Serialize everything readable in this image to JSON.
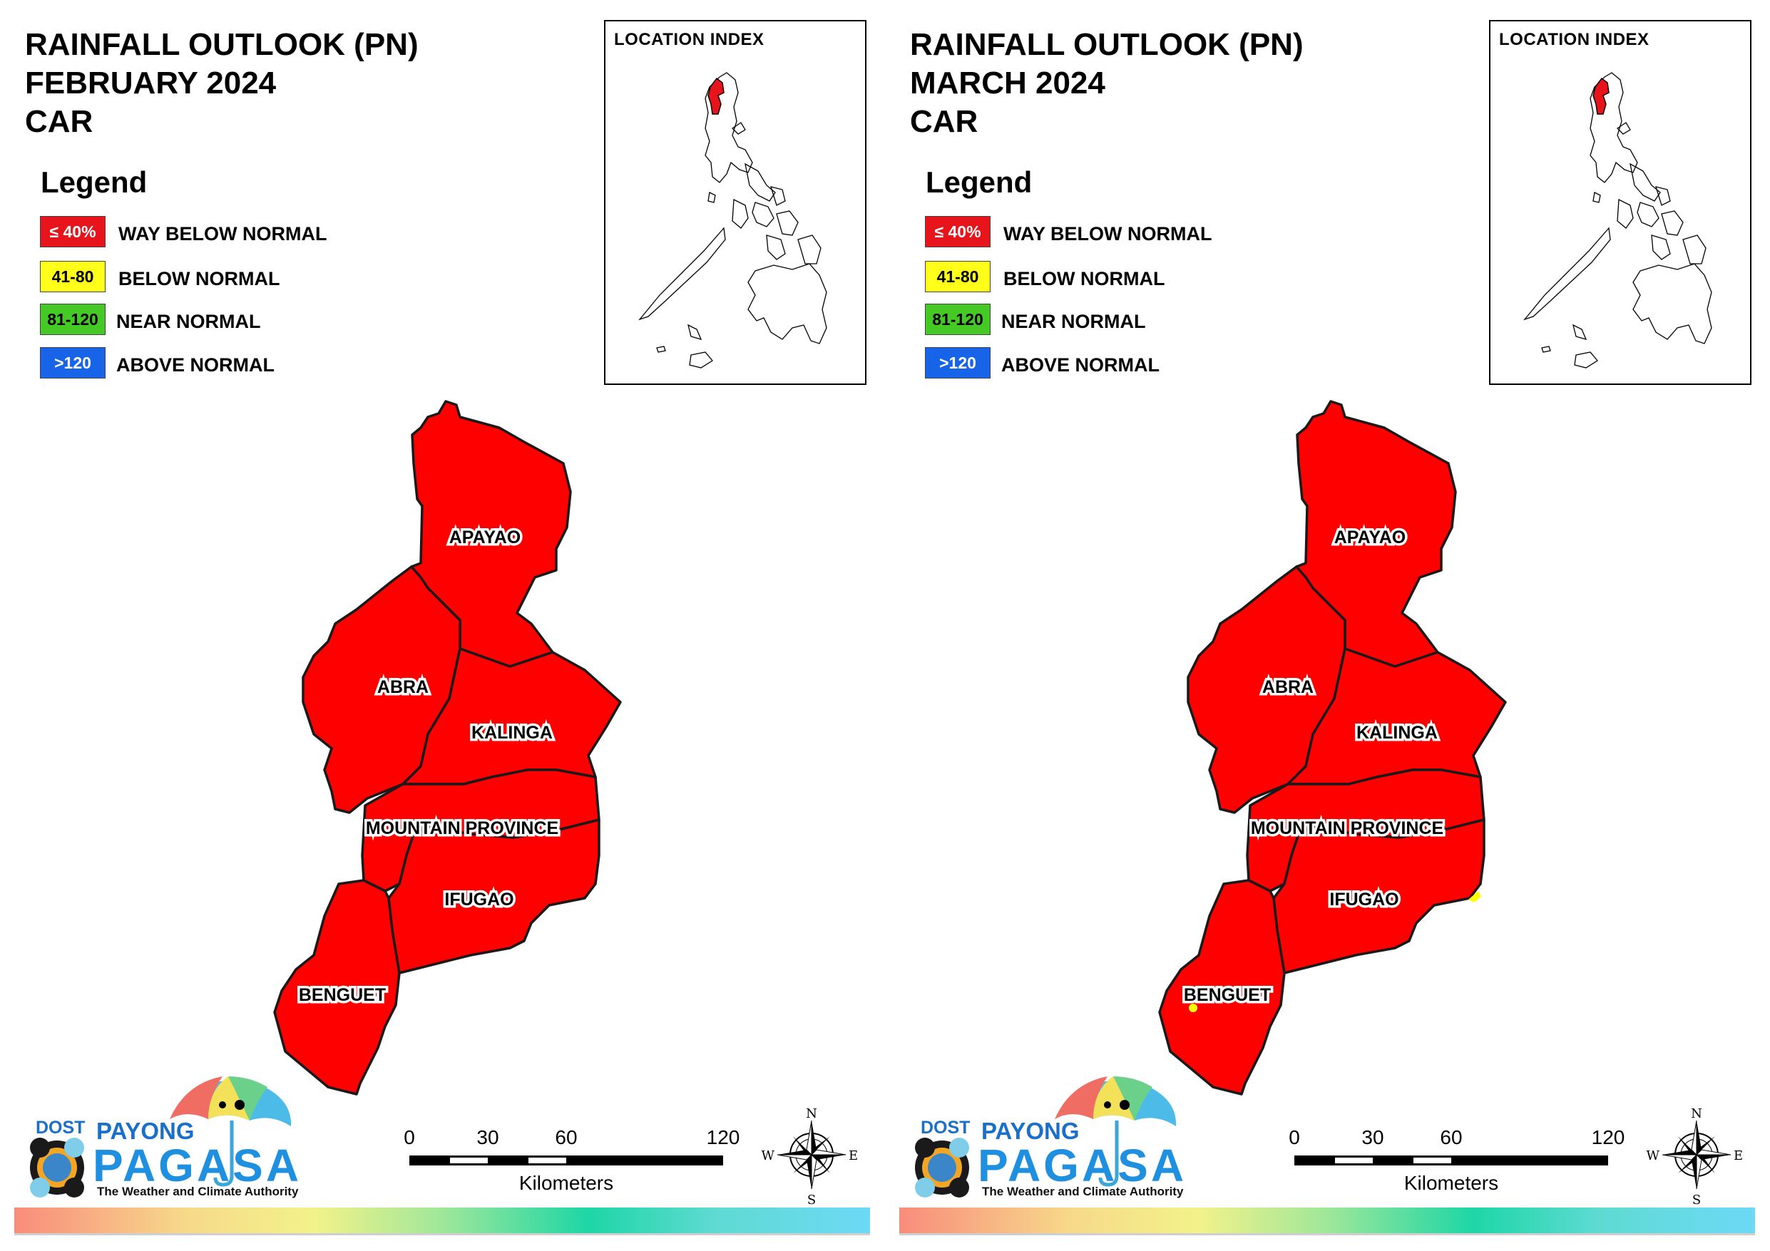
{
  "panels": [
    {
      "title_line1": "RAINFALL OUTLOOK (PN)",
      "title_line2": "FEBRUARY 2024",
      "title_line3": "CAR"
    },
    {
      "title_line1": "RAINFALL OUTLOOK (PN)",
      "title_line2": "MARCH 2024",
      "title_line3": "CAR"
    }
  ],
  "legend": {
    "title": "Legend",
    "items": [
      {
        "range": "≤ 40%",
        "label": "WAY BELOW NORMAL",
        "color": "#e8141b",
        "text_color": "#ffffff"
      },
      {
        "range": "41-80",
        "label": "BELOW NORMAL",
        "color": "#ffff1a",
        "text_color": "#000000"
      },
      {
        "range": "81-120",
        "label": "NEAR NORMAL",
        "color": "#44c925",
        "text_color": "#000000"
      },
      {
        "range": ">120",
        "label": "ABOVE NORMAL",
        "color": "#1764e8",
        "text_color": "#ffffff"
      }
    ]
  },
  "location_index": {
    "title": "LOCATION INDEX"
  },
  "provinces": {
    "apayao": "APAYAO",
    "abra": "ABRA",
    "kalinga": "KALINGA",
    "mountain_province": "MOUNTAIN PROVINCE",
    "ifugao": "IFUGAO",
    "benguet": "BENGUET"
  },
  "colors": {
    "way_below_normal": "#ff0000",
    "below_normal_patch": "#ffff00",
    "boundary": "#1a1a1a"
  },
  "scale": {
    "ticks": [
      "0",
      "30",
      "60",
      "120"
    ],
    "unit": "Kilometers"
  },
  "compass": {
    "n": "N",
    "s": "S",
    "e": "E",
    "w": "W"
  },
  "logo": {
    "dost": "DOST",
    "payong": "PAYONG",
    "pagasa": "PAGASA",
    "tagline": "The Weather and Climate Authority"
  }
}
